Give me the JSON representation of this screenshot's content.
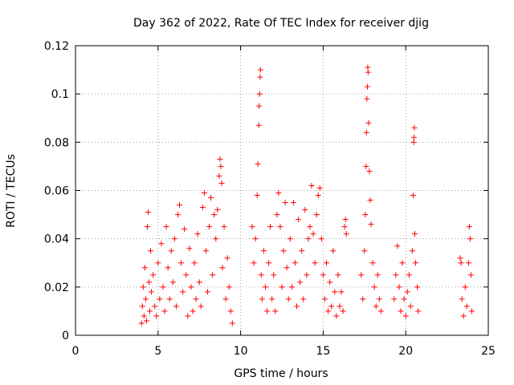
{
  "chart_data": {
    "type": "scatter",
    "title": "Day 362 of 2022, Rate Of TEC Index for receiver djig",
    "xlabel": "GPS time / hours",
    "ylabel": "ROTI / TECUs",
    "xlim": [
      0,
      25
    ],
    "ylim": [
      0,
      0.12
    ],
    "xticks": [
      0,
      5,
      10,
      15,
      20,
      25
    ],
    "yticks": [
      0,
      0.02,
      0.04,
      0.06,
      0.08,
      0.1,
      0.12
    ],
    "ytick_labels": [
      "0",
      "0.02",
      "0.04",
      "0.06",
      "0.08",
      "0.1",
      "0.12"
    ],
    "grid": true,
    "marker": "+",
    "color": "#ff0000",
    "series": [
      {
        "points": [
          [
            4.0,
            0.005
          ],
          [
            4.05,
            0.012
          ],
          [
            4.1,
            0.02
          ],
          [
            4.15,
            0.008
          ],
          [
            4.2,
            0.028
          ],
          [
            4.25,
            0.015
          ],
          [
            4.3,
            0.006
          ],
          [
            4.35,
            0.045
          ],
          [
            4.4,
            0.051
          ],
          [
            4.45,
            0.022
          ],
          [
            4.5,
            0.01
          ],
          [
            4.55,
            0.035
          ],
          [
            4.6,
            0.018
          ],
          [
            4.7,
            0.025
          ],
          [
            4.8,
            0.012
          ],
          [
            4.9,
            0.008
          ],
          [
            5.0,
            0.03
          ],
          [
            5.1,
            0.015
          ],
          [
            5.2,
            0.038
          ],
          [
            5.3,
            0.02
          ],
          [
            5.4,
            0.01
          ],
          [
            5.5,
            0.045
          ],
          [
            5.6,
            0.028
          ],
          [
            5.7,
            0.015
          ],
          [
            5.8,
            0.035
          ],
          [
            5.9,
            0.022
          ],
          [
            6.0,
            0.04
          ],
          [
            6.1,
            0.012
          ],
          [
            6.2,
            0.05
          ],
          [
            6.3,
            0.054
          ],
          [
            6.4,
            0.03
          ],
          [
            6.5,
            0.018
          ],
          [
            6.6,
            0.044
          ],
          [
            6.7,
            0.025
          ],
          [
            6.8,
            0.008
          ],
          [
            6.9,
            0.036
          ],
          [
            7.0,
            0.02
          ],
          [
            7.1,
            0.01
          ],
          [
            7.2,
            0.03
          ],
          [
            7.3,
            0.015
          ],
          [
            7.4,
            0.042
          ],
          [
            7.5,
            0.022
          ],
          [
            7.6,
            0.012
          ],
          [
            7.7,
            0.053
          ],
          [
            7.8,
            0.059
          ],
          [
            7.9,
            0.035
          ],
          [
            8.0,
            0.018
          ],
          [
            8.1,
            0.045
          ],
          [
            8.2,
            0.057
          ],
          [
            8.3,
            0.025
          ],
          [
            8.4,
            0.05
          ],
          [
            8.5,
            0.04
          ],
          [
            8.6,
            0.052
          ],
          [
            8.7,
            0.066
          ],
          [
            8.75,
            0.073
          ],
          [
            8.8,
            0.07
          ],
          [
            8.85,
            0.063
          ],
          [
            8.9,
            0.028
          ],
          [
            9.0,
            0.045
          ],
          [
            9.1,
            0.015
          ],
          [
            9.2,
            0.032
          ],
          [
            9.3,
            0.02
          ],
          [
            9.4,
            0.01
          ],
          [
            9.5,
            0.005
          ],
          [
            10.7,
            0.045
          ],
          [
            10.8,
            0.03
          ],
          [
            10.9,
            0.04
          ],
          [
            11.0,
            0.058
          ],
          [
            11.05,
            0.071
          ],
          [
            11.1,
            0.087
          ],
          [
            11.12,
            0.095
          ],
          [
            11.15,
            0.1
          ],
          [
            11.18,
            0.107
          ],
          [
            11.2,
            0.11
          ],
          [
            11.25,
            0.025
          ],
          [
            11.3,
            0.015
          ],
          [
            11.4,
            0.035
          ],
          [
            11.5,
            0.02
          ],
          [
            11.6,
            0.01
          ],
          [
            11.7,
            0.03
          ],
          [
            11.8,
            0.045
          ],
          [
            11.9,
            0.015
          ],
          [
            12.0,
            0.025
          ],
          [
            12.1,
            0.01
          ],
          [
            12.2,
            0.05
          ],
          [
            12.3,
            0.059
          ],
          [
            12.4,
            0.045
          ],
          [
            12.5,
            0.02
          ],
          [
            12.6,
            0.035
          ],
          [
            12.7,
            0.055
          ],
          [
            12.8,
            0.028
          ],
          [
            12.9,
            0.015
          ],
          [
            13.0,
            0.04
          ],
          [
            13.1,
            0.02
          ],
          [
            13.2,
            0.055
          ],
          [
            13.3,
            0.03
          ],
          [
            13.4,
            0.012
          ],
          [
            13.5,
            0.048
          ],
          [
            13.6,
            0.022
          ],
          [
            13.7,
            0.035
          ],
          [
            13.8,
            0.015
          ],
          [
            13.9,
            0.052
          ],
          [
            14.0,
            0.025
          ],
          [
            14.1,
            0.04
          ],
          [
            14.2,
            0.045
          ],
          [
            14.3,
            0.062
          ],
          [
            14.4,
            0.042
          ],
          [
            14.5,
            0.03
          ],
          [
            14.6,
            0.05
          ],
          [
            14.7,
            0.058
          ],
          [
            14.8,
            0.061
          ],
          [
            14.9,
            0.04
          ],
          [
            15.0,
            0.025
          ],
          [
            15.1,
            0.015
          ],
          [
            15.2,
            0.03
          ],
          [
            15.3,
            0.01
          ],
          [
            15.4,
            0.022
          ],
          [
            15.5,
            0.012
          ],
          [
            15.6,
            0.035
          ],
          [
            15.7,
            0.018
          ],
          [
            15.8,
            0.008
          ],
          [
            15.9,
            0.025
          ],
          [
            16.0,
            0.012
          ],
          [
            16.1,
            0.018
          ],
          [
            16.2,
            0.01
          ],
          [
            16.3,
            0.045
          ],
          [
            16.35,
            0.048
          ],
          [
            16.4,
            0.042
          ],
          [
            17.3,
            0.025
          ],
          [
            17.4,
            0.015
          ],
          [
            17.5,
            0.035
          ],
          [
            17.55,
            0.05
          ],
          [
            17.6,
            0.07
          ],
          [
            17.62,
            0.084
          ],
          [
            17.65,
            0.098
          ],
          [
            17.68,
            0.103
          ],
          [
            17.7,
            0.111
          ],
          [
            17.72,
            0.109
          ],
          [
            17.75,
            0.088
          ],
          [
            17.8,
            0.068
          ],
          [
            17.85,
            0.056
          ],
          [
            17.9,
            0.046
          ],
          [
            18.0,
            0.03
          ],
          [
            18.1,
            0.02
          ],
          [
            18.2,
            0.012
          ],
          [
            18.3,
            0.025
          ],
          [
            18.4,
            0.015
          ],
          [
            18.5,
            0.01
          ],
          [
            19.3,
            0.015
          ],
          [
            19.4,
            0.025
          ],
          [
            19.5,
            0.037
          ],
          [
            19.6,
            0.02
          ],
          [
            19.7,
            0.01
          ],
          [
            19.8,
            0.03
          ],
          [
            19.9,
            0.015
          ],
          [
            20.0,
            0.008
          ],
          [
            20.1,
            0.018
          ],
          [
            20.2,
            0.025
          ],
          [
            20.3,
            0.012
          ],
          [
            20.4,
            0.035
          ],
          [
            20.45,
            0.058
          ],
          [
            20.48,
            0.08
          ],
          [
            20.5,
            0.082
          ],
          [
            20.52,
            0.086
          ],
          [
            20.55,
            0.042
          ],
          [
            20.6,
            0.03
          ],
          [
            20.7,
            0.02
          ],
          [
            20.75,
            0.01
          ],
          [
            23.3,
            0.032
          ],
          [
            23.35,
            0.03
          ],
          [
            23.4,
            0.015
          ],
          [
            23.5,
            0.008
          ],
          [
            23.6,
            0.02
          ],
          [
            23.7,
            0.012
          ],
          [
            23.8,
            0.03
          ],
          [
            23.85,
            0.045
          ],
          [
            23.9,
            0.04
          ],
          [
            23.95,
            0.025
          ],
          [
            24.0,
            0.01
          ]
        ]
      }
    ]
  }
}
